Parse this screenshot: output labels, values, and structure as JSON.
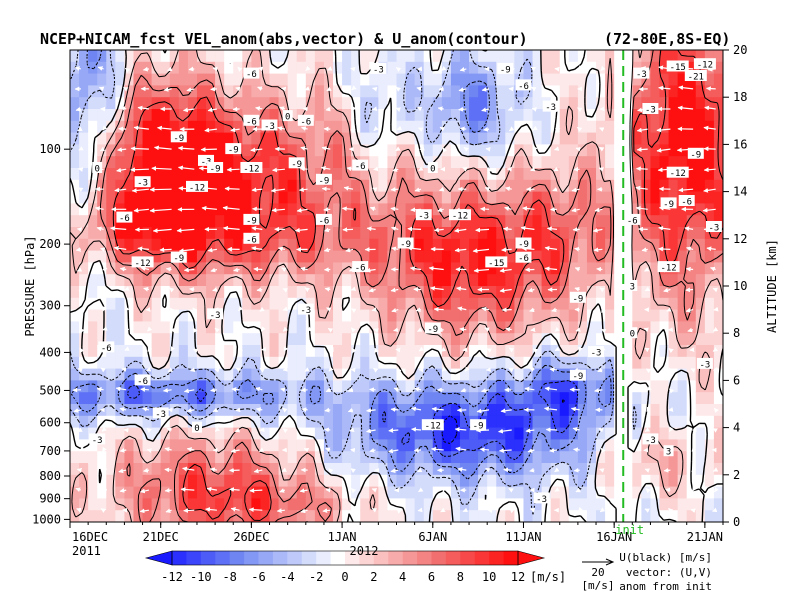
{
  "title": "NCEP+NICAM_fcst VEL_anom(abs,vector) & U_anom(contour)",
  "region": "(72-80E,8S-EQ)",
  "colors": {
    "neg_strong": "#1a1aff",
    "neg_mid": "#6f86f2",
    "neg_light": "#c9d3fb",
    "neutral": "#ffffff",
    "pos_light": "#fbc9c9",
    "pos_mid": "#f26f6f",
    "pos_strong": "#ff1010",
    "contour": "#000000",
    "vector": "#ffffff",
    "init_line": "#22bb22"
  },
  "chart_data": {
    "type": "heatmap",
    "title": "NCEP+NICAM_fcst VEL_anom(abs,vector) & U_anom(contour)",
    "subtitle": "(72-80E,8S-EQ)",
    "x_ticks": [
      "16DEC",
      "21DEC",
      "26DEC",
      "1JAN",
      "6JAN",
      "11JAN",
      "16JAN",
      "21JAN"
    ],
    "x_year_left": "2011",
    "x_year_mid": "2012",
    "x_range_days": [
      0,
      36
    ],
    "init_day": 30.5,
    "init_label": "init",
    "y_left_label": "PRESSURE [hPa]",
    "y_left_ticks": [
      "100",
      "200",
      "300",
      "400",
      "500",
      "600",
      "700",
      "800",
      "900",
      "1000"
    ],
    "y_left_values": [
      100,
      200,
      300,
      400,
      500,
      600,
      700,
      800,
      900,
      1000
    ],
    "y_right_label": "ALTITUDE [km]",
    "y_right_ticks": [
      "0",
      "2",
      "4",
      "6",
      "8",
      "10",
      "12",
      "14",
      "16",
      "18",
      "20"
    ],
    "y_right_values": [
      0,
      2,
      4,
      6,
      8,
      10,
      12,
      14,
      16,
      18,
      20
    ],
    "colorbar_ticks": [
      "-12",
      "-10",
      "-8",
      "-6",
      "-4",
      "-2",
      "0",
      "2",
      "4",
      "6",
      "8",
      "10",
      "12"
    ],
    "colorbar_values": [
      -12,
      -10,
      -8,
      -6,
      -4,
      -2,
      0,
      2,
      4,
      6,
      8,
      10,
      12
    ],
    "colorbar_unit": "[m/s]",
    "vector_ref_value": "20",
    "vector_ref_unit": "[m/s]",
    "legend_lines": [
      "U(black) [m/s]",
      "vector: (U,V)",
      "anom from init"
    ],
    "field_features": [
      {
        "day": 8,
        "alt_km": 14.6,
        "amp": 11,
        "sx": 6.0,
        "sy": 2.4
      },
      {
        "day": 5,
        "alt_km": 15.6,
        "amp": 7,
        "sx": 2.2,
        "sy": 2.6
      },
      {
        "day": 9,
        "alt_km": 11.9,
        "amp": 4,
        "sx": 6.0,
        "sy": 1.2
      },
      {
        "day": 3,
        "alt_km": 12.5,
        "amp": 3,
        "sx": 3.0,
        "sy": 1.0
      },
      {
        "day": 22,
        "alt_km": 11.0,
        "amp": 11,
        "sx": 3.5,
        "sy": 2.2
      },
      {
        "day": 27,
        "alt_km": 12.5,
        "amp": 5,
        "sx": 2.0,
        "sy": 2.0
      },
      {
        "day": 34,
        "alt_km": 16.0,
        "amp": 13,
        "sx": 2.5,
        "sy": 4.5
      },
      {
        "day": 1,
        "alt_km": 17.0,
        "amp": -8,
        "sx": 1.5,
        "sy": 4.0
      },
      {
        "day": 22,
        "alt_km": 17.6,
        "amp": -7,
        "sx": 2.0,
        "sy": 1.5
      },
      {
        "day": 17,
        "alt_km": 17.2,
        "amp": -4,
        "sx": 1.0,
        "sy": 1.8
      },
      {
        "day": 5,
        "alt_km": 5.4,
        "amp": -8,
        "sx": 6.0,
        "sy": 0.7
      },
      {
        "day": 22,
        "alt_km": 3.9,
        "amp": -11,
        "sx": 5.0,
        "sy": 1.4
      },
      {
        "day": 27.5,
        "alt_km": 5.7,
        "amp": -7,
        "sx": 2.0,
        "sy": 0.9
      },
      {
        "day": 8,
        "alt_km": 1.4,
        "amp": 9,
        "sx": 4.0,
        "sy": 1.6
      },
      {
        "day": 32,
        "alt_km": 2.6,
        "amp": 4,
        "sx": 2.0,
        "sy": 1.0
      },
      {
        "day": 12,
        "alt_km": 0.6,
        "amp": 3,
        "sx": 3.0,
        "sy": 0.6
      }
    ],
    "contour_labels": [
      {
        "text": "-6",
        "day": 10,
        "alt_km": 19.0
      },
      {
        "text": "-3",
        "day": 17,
        "alt_km": 19.2
      },
      {
        "text": "-9",
        "day": 24,
        "alt_km": 19.2
      },
      {
        "text": "-6",
        "day": 25,
        "alt_km": 18.5
      },
      {
        "text": "-3",
        "day": 26.5,
        "alt_km": 17.6
      },
      {
        "text": "-9",
        "day": 6,
        "alt_km": 16.3
      },
      {
        "text": "-6",
        "day": 10,
        "alt_km": 17.0
      },
      {
        "text": "-3",
        "day": 11,
        "alt_km": 16.8
      },
      {
        "text": "-6",
        "day": 13,
        "alt_km": 17.0
      },
      {
        "text": "-9",
        "day": 9,
        "alt_km": 15.8
      },
      {
        "text": "-3",
        "day": 7.5,
        "alt_km": 15.3
      },
      {
        "text": "-9",
        "day": 8,
        "alt_km": 15.0
      },
      {
        "text": "-12",
        "day": 10,
        "alt_km": 15.0
      },
      {
        "text": "-9",
        "day": 12.5,
        "alt_km": 15.2
      },
      {
        "text": "-6",
        "day": 16,
        "alt_km": 15.1
      },
      {
        "text": "-3",
        "day": 4,
        "alt_km": 14.4
      },
      {
        "text": "-12",
        "day": 7,
        "alt_km": 14.2
      },
      {
        "text": "-9",
        "day": 14,
        "alt_km": 14.5
      },
      {
        "text": "-6",
        "day": 3,
        "alt_km": 12.9
      },
      {
        "text": "-9",
        "day": 10,
        "alt_km": 12.8
      },
      {
        "text": "-6",
        "day": 14,
        "alt_km": 12.8
      },
      {
        "text": "-3",
        "day": 19.5,
        "alt_km": 13.0
      },
      {
        "text": "-12",
        "day": 21.5,
        "alt_km": 13.0
      },
      {
        "text": "-6",
        "day": 10,
        "alt_km": 12.0
      },
      {
        "text": "-9",
        "day": 18.5,
        "alt_km": 11.8
      },
      {
        "text": "-9",
        "day": 25,
        "alt_km": 11.8
      },
      {
        "text": "-12",
        "day": 4,
        "alt_km": 11.0
      },
      {
        "text": "-9",
        "day": 6,
        "alt_km": 11.2
      },
      {
        "text": "-6",
        "day": 16,
        "alt_km": 10.8
      },
      {
        "text": "-15",
        "day": 23.5,
        "alt_km": 11.0
      },
      {
        "text": "-6",
        "day": 25,
        "alt_km": 11.2
      },
      {
        "text": "-9",
        "day": 28,
        "alt_km": 9.5
      },
      {
        "text": "-3",
        "day": 8,
        "alt_km": 8.8
      },
      {
        "text": "-3",
        "day": 13,
        "alt_km": 9.0
      },
      {
        "text": "-9",
        "day": 20,
        "alt_km": 8.2
      },
      {
        "text": "-6",
        "day": 2,
        "alt_km": 7.4
      },
      {
        "text": "-3",
        "day": 29,
        "alt_km": 7.2
      },
      {
        "text": "-6",
        "day": 4,
        "alt_km": 6.0
      },
      {
        "text": "-9",
        "day": 28,
        "alt_km": 6.2
      },
      {
        "text": "-3",
        "day": 5,
        "alt_km": 4.6
      },
      {
        "text": "-12",
        "day": 20,
        "alt_km": 4.1
      },
      {
        "text": "-9",
        "day": 22.5,
        "alt_km": 4.1
      },
      {
        "text": "-3",
        "day": 1.5,
        "alt_km": 3.5
      },
      {
        "text": "-3",
        "day": 26,
        "alt_km": 1.0
      },
      {
        "text": "-3",
        "day": 32,
        "alt_km": 3.5
      },
      {
        "text": "-3",
        "day": 35,
        "alt_km": 6.7
      },
      {
        "text": "-15",
        "day": 33.5,
        "alt_km": 19.3
      },
      {
        "text": "-12",
        "day": 35,
        "alt_km": 19.4
      },
      {
        "text": "-21",
        "day": 34.5,
        "alt_km": 18.9
      },
      {
        "text": "-9",
        "day": 34.5,
        "alt_km": 15.6
      },
      {
        "text": "-12",
        "day": 33.5,
        "alt_km": 14.8
      },
      {
        "text": "-9",
        "day": 33,
        "alt_km": 13.5
      },
      {
        "text": "-6",
        "day": 34,
        "alt_km": 13.6
      },
      {
        "text": "-3",
        "day": 35.5,
        "alt_km": 12.5
      },
      {
        "text": "-12",
        "day": 33,
        "alt_km": 10.8
      },
      {
        "text": "-6",
        "day": 31,
        "alt_km": 12.8
      },
      {
        "text": "-3",
        "day": 32,
        "alt_km": 17.5
      },
      {
        "text": "-3",
        "day": 31.5,
        "alt_km": 19.0
      },
      {
        "text": "0",
        "day": 12,
        "alt_km": 17.2
      },
      {
        "text": "0",
        "day": 20,
        "alt_km": 15.0
      },
      {
        "text": "0",
        "day": 1.5,
        "alt_km": 15.0
      },
      {
        "text": "0",
        "day": 31,
        "alt_km": 8.0
      },
      {
        "text": "0",
        "day": 7,
        "alt_km": 4.0
      },
      {
        "text": "3",
        "day": 31,
        "alt_km": 10.0
      },
      {
        "text": "3",
        "day": 33,
        "alt_km": 3.0
      }
    ]
  }
}
